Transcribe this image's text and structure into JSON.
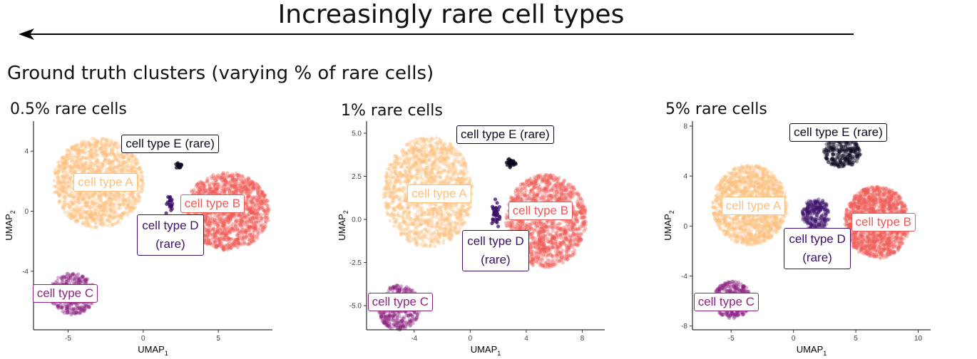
{
  "banner": {
    "title": "Increasingly rare cell types"
  },
  "section_title": "Ground truth clusters (varying % of rare cells)",
  "colors": {
    "cell type A": "#fdbf7d",
    "cell type B": "#ee5a55",
    "cell type C": "#8b2381",
    "cell type D": "#3d0f6a",
    "cell type E (rare)": "#0d0820"
  },
  "chart_data": [
    {
      "type": "scatter",
      "title": "0.5% rare cells",
      "xlabel": "UMAP1",
      "ylabel": "UMAP2",
      "xlim": [
        -7.3,
        8.6
      ],
      "ylim": [
        -7.9,
        6.0
      ],
      "xticks": [
        -5,
        0,
        5
      ],
      "yticks": [
        -4,
        0,
        4
      ],
      "xtick_labels": [
        "-5",
        "0",
        "5"
      ],
      "ytick_labels": [
        "-4",
        "0",
        "4"
      ],
      "series": [
        {
          "name": "cell type A",
          "center": [
            -3.0,
            1.9
          ],
          "spread": [
            3.0,
            3.0
          ],
          "n": 1400,
          "shape": "disc"
        },
        {
          "name": "cell type B",
          "center": [
            5.6,
            0.0
          ],
          "spread": [
            2.8,
            2.6
          ],
          "n": 1300,
          "shape": "disc"
        },
        {
          "name": "cell type C",
          "center": [
            -4.7,
            -5.5
          ],
          "spread": [
            1.5,
            1.4
          ],
          "n": 400,
          "shape": "disc"
        },
        {
          "name": "cell type D",
          "center": [
            1.8,
            0.6
          ],
          "spread": [
            0.35,
            1.0
          ],
          "n": 22,
          "shape": "scatter"
        },
        {
          "name": "cell type E (rare)",
          "center": [
            2.4,
            3.0
          ],
          "spread": [
            0.3,
            0.3
          ],
          "n": 14,
          "shape": "scatter"
        }
      ],
      "labels": [
        {
          "text": "cell type A",
          "series": "cell type A",
          "x": -2.5,
          "y": 1.9
        },
        {
          "text": "cell type B",
          "series": "cell type B",
          "x": 4.6,
          "y": 0.5
        },
        {
          "text": "cell type C",
          "series": "cell type C",
          "x": -5.2,
          "y": -5.5
        },
        {
          "text": "cell type D (rare)",
          "lines": [
            "cell type D",
            "(rare)"
          ],
          "series": "cell type D",
          "x": 1.8,
          "y": -1.6
        },
        {
          "text": "cell type E (rare)",
          "series": "cell type E (rare)",
          "x": 1.8,
          "y": 4.5
        }
      ]
    },
    {
      "type": "scatter",
      "title": "1% rare cells",
      "xlabel": "UMAP1",
      "ylabel": "UMAP2",
      "xlim": [
        -7.4,
        9.6
      ],
      "ylim": [
        -6.4,
        5.7
      ],
      "xticks": [
        -4,
        0,
        4,
        8
      ],
      "yticks": [
        -5.0,
        -2.5,
        0.0,
        2.5,
        5.0
      ],
      "xtick_labels": [
        "-4",
        "0",
        "4",
        "8"
      ],
      "ytick_labels": [
        "-5.0",
        "-2.5",
        "0.0",
        "2.5",
        "5.0"
      ],
      "series": [
        {
          "name": "cell type A",
          "center": [
            -3.0,
            1.6
          ],
          "spread": [
            3.2,
            3.2
          ],
          "n": 1400,
          "shape": "disc"
        },
        {
          "name": "cell type B",
          "center": [
            5.4,
            -0.1
          ],
          "spread": [
            2.9,
            2.7
          ],
          "n": 1300,
          "shape": "disc"
        },
        {
          "name": "cell type C",
          "center": [
            -5.1,
            -5.1
          ],
          "spread": [
            1.5,
            1.3
          ],
          "n": 400,
          "shape": "disc"
        },
        {
          "name": "cell type D",
          "center": [
            1.8,
            0.4
          ],
          "spread": [
            0.45,
            1.1
          ],
          "n": 40,
          "shape": "scatter"
        },
        {
          "name": "cell type E (rare)",
          "center": [
            2.9,
            3.3
          ],
          "spread": [
            0.45,
            0.35
          ],
          "n": 30,
          "shape": "scatter"
        }
      ],
      "labels": [
        {
          "text": "cell type A",
          "series": "cell type A",
          "x": -2.2,
          "y": 1.5
        },
        {
          "text": "cell type B",
          "series": "cell type B",
          "x": 5.0,
          "y": 0.5
        },
        {
          "text": "cell type C",
          "series": "cell type C",
          "x": -5.0,
          "y": -4.8
        },
        {
          "text": "cell type D (rare)",
          "lines": [
            "cell type D",
            "(rare)"
          ],
          "series": "cell type D",
          "x": 1.8,
          "y": -1.8
        },
        {
          "text": "cell type E (rare)",
          "series": "cell type E (rare)",
          "x": 2.5,
          "y": 4.9
        }
      ]
    },
    {
      "type": "scatter",
      "title": "5% rare cells",
      "xlabel": "UMAP1",
      "ylabel": "UMAP2",
      "xlim": [
        -8.1,
        11.0
      ],
      "ylim": [
        -8.3,
        8.4
      ],
      "xticks": [
        -5,
        0,
        5,
        10
      ],
      "yticks": [
        -8,
        -4,
        0,
        4,
        8
      ],
      "xtick_labels": [
        "-5",
        "0",
        "5",
        "10"
      ],
      "ytick_labels": [
        "-8",
        "-4",
        "0",
        "4",
        "8"
      ],
      "series": [
        {
          "name": "cell type A",
          "center": [
            -3.5,
            1.7
          ],
          "spread": [
            3.0,
            3.2
          ],
          "n": 1400,
          "shape": "disc"
        },
        {
          "name": "cell type B",
          "center": [
            6.7,
            0.3
          ],
          "spread": [
            2.6,
            2.9
          ],
          "n": 1300,
          "shape": "disc"
        },
        {
          "name": "cell type C",
          "center": [
            -4.9,
            -5.9
          ],
          "spread": [
            1.5,
            1.5
          ],
          "n": 400,
          "shape": "disc"
        },
        {
          "name": "cell type D",
          "center": [
            1.8,
            0.9
          ],
          "spread": [
            1.1,
            1.3
          ],
          "n": 260,
          "shape": "disc"
        },
        {
          "name": "cell type E (rare)",
          "center": [
            3.9,
            5.9
          ],
          "spread": [
            1.5,
            1.2
          ],
          "n": 300,
          "shape": "disc"
        }
      ],
      "labels": [
        {
          "text": "cell type A",
          "series": "cell type A",
          "x": -3.2,
          "y": 1.6
        },
        {
          "text": "cell type B",
          "series": "cell type B",
          "x": 7.2,
          "y": 0.3
        },
        {
          "text": "cell type C",
          "series": "cell type C",
          "x": -5.4,
          "y": -6.1
        },
        {
          "text": "cell type D (rare)",
          "lines": [
            "cell type D",
            "(rare)"
          ],
          "series": "cell type D",
          "x": 1.9,
          "y": -1.8
        },
        {
          "text": "cell type E (rare)",
          "series": "cell type E (rare)",
          "x": 3.6,
          "y": 7.5
        }
      ]
    }
  ]
}
